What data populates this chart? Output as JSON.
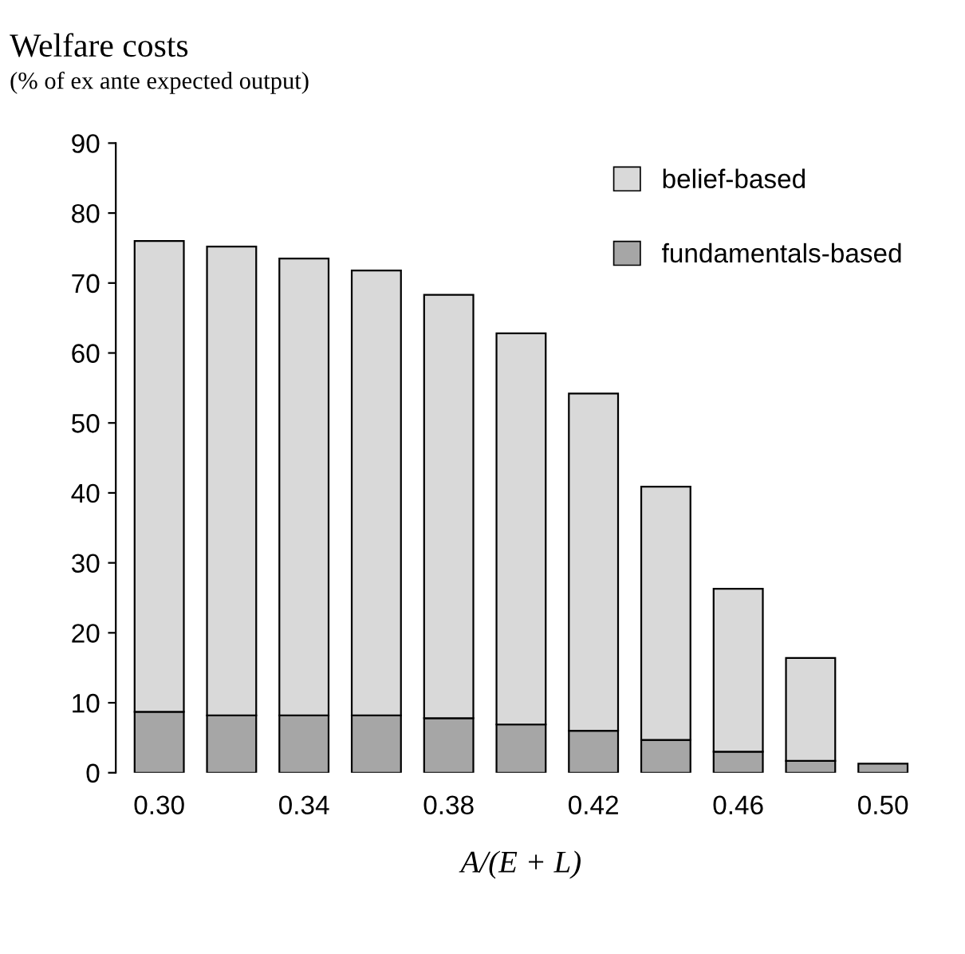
{
  "chart_data": {
    "type": "bar",
    "title": "Welfare costs",
    "subtitle": "(% of ex ante expected output)",
    "xlabel": "A/(E + L)",
    "categories": [
      "0.30",
      null,
      "0.34",
      null,
      "0.38",
      null,
      "0.42",
      null,
      "0.46",
      null,
      "0.50"
    ],
    "stacked": true,
    "series": [
      {
        "name": "fundamentals-based",
        "color": "#a6a6a6",
        "values": [
          8.7,
          8.2,
          8.2,
          8.2,
          7.8,
          6.9,
          6.0,
          4.7,
          3.0,
          1.7,
          1.3
        ]
      },
      {
        "name": "belief-based",
        "color": "#d9d9d9",
        "values": [
          67.3,
          67.0,
          65.3,
          63.6,
          60.5,
          55.9,
          48.2,
          36.2,
          23.3,
          14.7,
          null
        ]
      }
    ],
    "ylim": [
      0,
      90
    ],
    "yticks": [
      0,
      10,
      20,
      30,
      40,
      50,
      60,
      70,
      80,
      90
    ],
    "grid": false,
    "legend": "top right"
  }
}
